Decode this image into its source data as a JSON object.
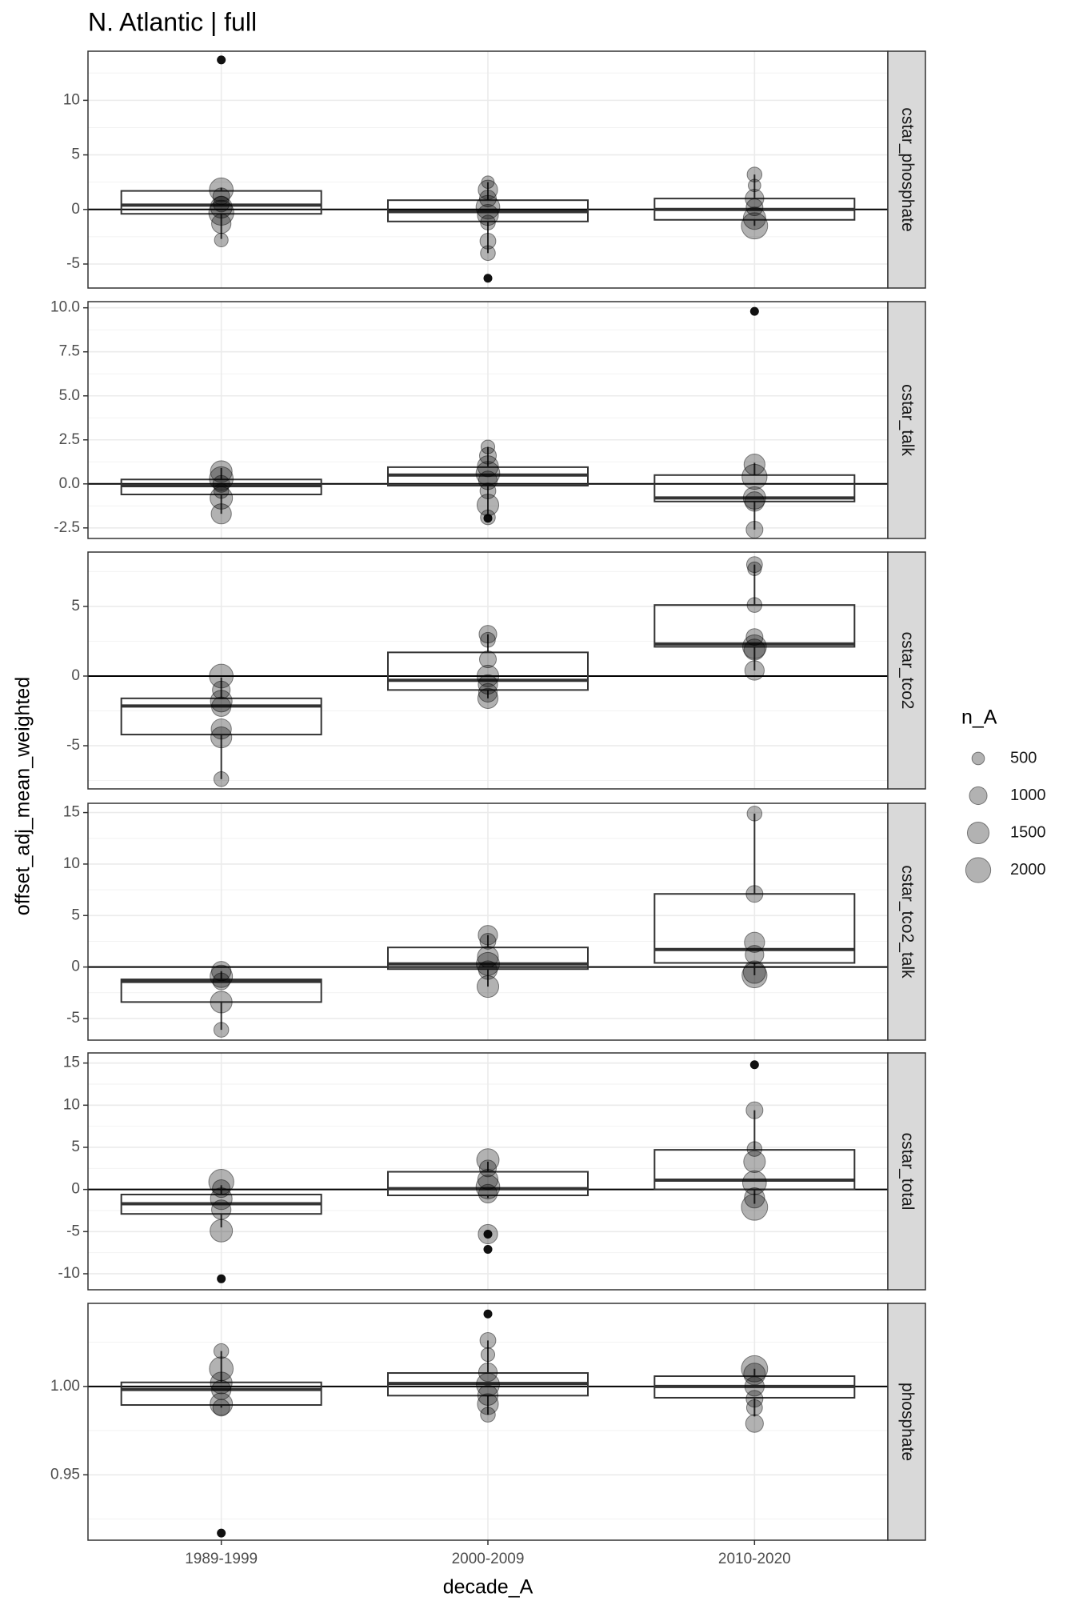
{
  "title": "N. Atlantic | full",
  "x_label": "decade_A",
  "y_label": "offset_adj_mean_weighted",
  "categories": [
    "1989-1999",
    "2000-2009",
    "2010-2020"
  ],
  "legend": {
    "title": "n_A",
    "values": [
      500,
      1000,
      1500,
      2000
    ]
  },
  "chart_data": [
    {
      "type": "box",
      "facet": "cstar_phosphate",
      "ylim": [
        -7.2,
        14.5
      ],
      "yticks": [
        -5,
        0,
        5,
        10
      ],
      "hline": 0,
      "boxes": [
        {
          "whislo": -2.7,
          "q1": -0.4,
          "median": 0.4,
          "q3": 1.7,
          "whishi": 2.0,
          "outliers": [
            13.7
          ]
        },
        {
          "whislo": -4.0,
          "q1": -1.1,
          "median": -0.2,
          "q3": 0.85,
          "whishi": 2.5,
          "outliers": [
            -6.3
          ]
        },
        {
          "whislo": -1.5,
          "q1": -0.95,
          "median": 0.0,
          "q3": 1.0,
          "whishi": 3.2,
          "outliers": []
        }
      ],
      "points": [
        {
          "values": [
            1.8,
            1.2,
            0.2,
            -0.3,
            -1.3,
            -2.8,
            0.5
          ],
          "sizes": [
            1800,
            900,
            1500,
            2000,
            1200,
            600,
            800
          ]
        },
        {
          "values": [
            2.5,
            1.8,
            1.0,
            0.2,
            -0.5,
            -1.2,
            -2.9,
            -4.0
          ],
          "sizes": [
            500,
            1200,
            900,
            1800,
            1400,
            700,
            800,
            700
          ]
        },
        {
          "values": [
            3.2,
            2.2,
            1.0,
            0.2,
            -0.8,
            -1.5
          ],
          "sizes": [
            700,
            500,
            1100,
            900,
            1600,
            2200
          ]
        }
      ]
    },
    {
      "type": "box",
      "facet": "cstar_talk",
      "ylim": [
        -3.1,
        10.35
      ],
      "yticks": [
        {
          "value": -2.5,
          "label": "-2.5"
        },
        {
          "value": 0,
          "label": "0.0"
        },
        {
          "value": 2.5,
          "label": "2.5"
        },
        {
          "value": 5,
          "label": "5.0"
        },
        {
          "value": 7.5,
          "label": "7.5"
        },
        {
          "value": 10,
          "label": "10.0"
        }
      ],
      "hline": 0,
      "boxes": [
        {
          "whislo": -1.7,
          "q1": -0.6,
          "median": -0.1,
          "q3": 0.25,
          "whishi": 0.9,
          "outliers": []
        },
        {
          "whislo": -1.9,
          "q1": -0.1,
          "median": 0.5,
          "q3": 0.95,
          "whishi": 2.1,
          "outliers": [
            -1.95
          ]
        },
        {
          "whislo": -2.6,
          "q1": -1.0,
          "median": -0.8,
          "q3": 0.5,
          "whishi": 1.2,
          "outliers": [
            9.8
          ]
        }
      ],
      "points": [
        {
          "values": [
            0.7,
            0.3,
            0.0,
            -0.4,
            -0.8,
            -1.7
          ],
          "sizes": [
            1500,
            1800,
            900,
            700,
            1600,
            1300
          ]
        },
        {
          "values": [
            2.1,
            1.6,
            1.0,
            0.6,
            0.2,
            -0.4,
            -1.2,
            -1.9
          ],
          "sizes": [
            600,
            900,
            1400,
            1800,
            1100,
            800,
            1500,
            700
          ]
        },
        {
          "values": [
            1.1,
            0.4,
            -0.8,
            -1.0,
            -2.6
          ],
          "sizes": [
            1400,
            2000,
            1600,
            1200,
            900
          ]
        }
      ]
    },
    {
      "type": "box",
      "facet": "cstar_tco2",
      "ylim": [
        -8.1,
        8.9
      ],
      "yticks": [
        -5,
        0,
        5
      ],
      "hline": 0,
      "boxes": [
        {
          "whislo": -7.4,
          "q1": -4.2,
          "median": -2.15,
          "q3": -1.6,
          "whishi": -0.1,
          "outliers": []
        },
        {
          "whislo": -1.6,
          "q1": -1.0,
          "median": -0.3,
          "q3": 1.7,
          "whishi": 3.0,
          "outliers": []
        },
        {
          "whislo": 0.4,
          "q1": 2.1,
          "median": 2.3,
          "q3": 5.1,
          "whishi": 8.0,
          "outliers": []
        }
      ],
      "points": [
        {
          "values": [
            0.0,
            -1.0,
            -1.8,
            -2.2,
            -3.8,
            -4.4,
            -7.4
          ],
          "sizes": [
            1800,
            1000,
            1500,
            1200,
            1300,
            1400,
            700
          ]
        },
        {
          "values": [
            3.0,
            2.6,
            1.2,
            0.0,
            -0.6,
            -1.2,
            -1.6
          ],
          "sizes": [
            1000,
            700,
            900,
            1500,
            1200,
            1100,
            1300
          ]
        },
        {
          "values": [
            8.0,
            7.7,
            5.1,
            2.8,
            2.1,
            1.9,
            0.4
          ],
          "sizes": [
            800,
            600,
            700,
            900,
            1800,
            1400,
            1200
          ]
        }
      ]
    },
    {
      "type": "box",
      "facet": "cstar_tco2_talk",
      "ylim": [
        -7.1,
        15.9
      ],
      "yticks": [
        -5,
        0,
        5,
        10,
        15
      ],
      "hline": 0,
      "boxes": [
        {
          "whislo": -6.1,
          "q1": -3.4,
          "median": -1.4,
          "q3": -1.2,
          "whishi": -0.4,
          "outliers": []
        },
        {
          "whislo": -1.9,
          "q1": -0.2,
          "median": 0.3,
          "q3": 1.9,
          "whishi": 3.1,
          "outliers": []
        },
        {
          "whislo": -0.8,
          "q1": 0.4,
          "median": 1.7,
          "q3": 7.1,
          "whishi": 14.9,
          "outliers": []
        }
      ],
      "points": [
        {
          "values": [
            -0.4,
            -0.9,
            -1.4,
            -3.4,
            -6.1
          ],
          "sizes": [
            1200,
            1600,
            900,
            1500,
            700
          ]
        },
        {
          "values": [
            3.1,
            2.5,
            1.0,
            0.3,
            -0.3,
            -1.9
          ],
          "sizes": [
            1200,
            800,
            1400,
            1700,
            1100,
            1500
          ]
        },
        {
          "values": [
            14.9,
            7.1,
            2.4,
            1.2,
            -0.5,
            -0.8
          ],
          "sizes": [
            700,
            900,
            1300,
            1100,
            1600,
            2000
          ]
        }
      ]
    },
    {
      "type": "box",
      "facet": "cstar_total",
      "ylim": [
        -11.9,
        16.2
      ],
      "yticks": [
        -10,
        -5,
        0,
        5,
        10,
        15
      ],
      "hline": 0,
      "boxes": [
        {
          "whislo": -4.5,
          "q1": -2.9,
          "median": -1.7,
          "q3": -0.6,
          "whishi": 0.5,
          "outliers": [
            -10.6
          ]
        },
        {
          "whislo": -1.0,
          "q1": -0.7,
          "median": 0.1,
          "q3": 2.1,
          "whishi": 3.3,
          "outliers": [
            -5.3,
            -7.1
          ]
        },
        {
          "whislo": -1.7,
          "q1": 0.0,
          "median": 1.1,
          "q3": 4.7,
          "whishi": 9.4,
          "outliers": [
            14.8
          ]
        }
      ],
      "points": [
        {
          "values": [
            0.9,
            0.1,
            -1.1,
            -2.4,
            -4.9
          ],
          "sizes": [
            2000,
            1000,
            1500,
            1200,
            1600
          ]
        },
        {
          "values": [
            3.5,
            2.5,
            1.2,
            0.3,
            -0.5,
            -5.3
          ],
          "sizes": [
            1600,
            900,
            1300,
            1800,
            1100,
            1200
          ]
        },
        {
          "values": [
            9.4,
            4.8,
            3.3,
            0.8,
            -1.0,
            -2.1
          ],
          "sizes": [
            900,
            700,
            1500,
            1800,
            1300,
            2200
          ]
        }
      ]
    },
    {
      "type": "box",
      "facet": "phosphate",
      "ylim": [
        0.913,
        1.047
      ],
      "yticks": [
        {
          "value": 0.95,
          "label": "0.95"
        },
        {
          "value": 1,
          "label": "1.00"
        }
      ],
      "hline": 1,
      "boxes": [
        {
          "whislo": 0.988,
          "q1": 0.9895,
          "median": 0.9983,
          "q3": 1.0023,
          "whishi": 1.02,
          "outliers": [
            0.917
          ]
        },
        {
          "whislo": 0.984,
          "q1": 0.9948,
          "median": 1.0017,
          "q3": 1.0076,
          "whishi": 1.026,
          "outliers": [
            1.041
          ]
        },
        {
          "whislo": 0.983,
          "q1": 0.9936,
          "median": 1.0,
          "q3": 1.0058,
          "whishi": 1.01,
          "outliers": []
        }
      ],
      "points": [
        {
          "values": [
            1.02,
            1.01,
            1.002,
            0.998,
            0.99,
            0.988
          ],
          "sizes": [
            700,
            1800,
            1500,
            1200,
            1600,
            900
          ]
        },
        {
          "values": [
            1.026,
            1.018,
            1.008,
            1.001,
            0.995,
            0.99,
            0.984
          ],
          "sizes": [
            800,
            600,
            1100,
            1700,
            1300,
            1400,
            700
          ]
        },
        {
          "values": [
            1.01,
            1.007,
            1.0,
            0.993,
            0.988,
            0.979
          ],
          "sizes": [
            2200,
            1500,
            1200,
            900,
            800,
            1000
          ]
        }
      ]
    }
  ]
}
